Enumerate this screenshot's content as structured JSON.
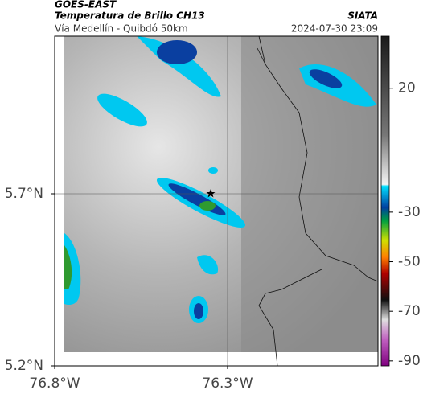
{
  "header": {
    "source": "GOES-EAST",
    "product": "Temperatura de Brillo CH13",
    "agency": "SIATA",
    "route": "Vía Medellín - Quibdó 50km",
    "timestamp": "2024-07-30 23:09"
  },
  "map": {
    "xlim": [
      -76.8,
      -75.865
    ],
    "ylim": [
      5.2,
      6.158
    ],
    "xticks": [
      {
        "value": -76.8,
        "label": "76.8°W"
      },
      {
        "value": -76.3,
        "label": "76.3°W"
      }
    ],
    "yticks": [
      {
        "value": 5.7,
        "label": "5.7°N"
      },
      {
        "value": 5.2,
        "label": "5.2°N"
      }
    ]
  },
  "colorbar": {
    "clim": [
      -92,
      41
    ],
    "ticks": [
      20,
      -30,
      -50,
      -70,
      -90
    ]
  }
}
